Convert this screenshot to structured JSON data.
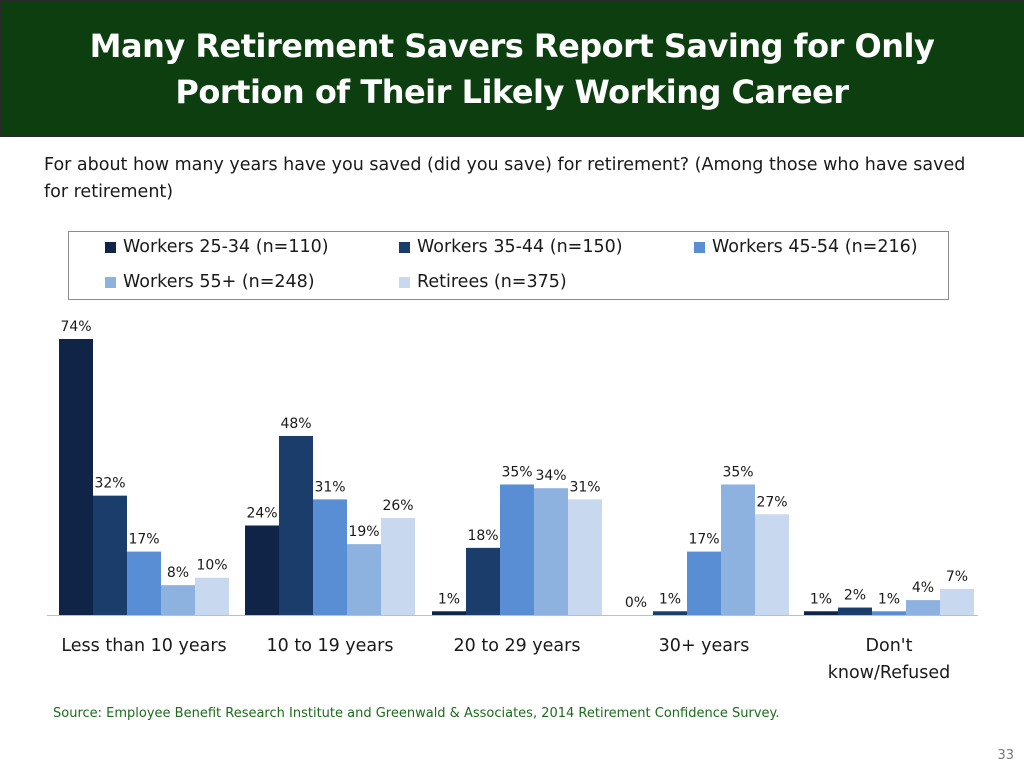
{
  "header": {
    "title": "Many Retirement Savers Report Saving for Only Portion of Their Likely Working Career"
  },
  "question": "For about how many years have you saved (did you save) for retirement? (Among those who have saved for retirement)",
  "source": "Source:  Employee Benefit Research Institute and Greenwald & Associates, 2014 Retirement Confidence Survey.",
  "page_number": "33",
  "colors": {
    "banner": "#0d3e10",
    "series": [
      "#0f2447",
      "#1b3d6c",
      "#5a8ed4",
      "#8eb2e0",
      "#c7d8ef"
    ]
  },
  "chart_data": {
    "type": "bar",
    "title": "",
    "xlabel": "",
    "ylabel": "",
    "ylim": [
      0,
      74
    ],
    "grid": false,
    "legend_position": "top",
    "categories": [
      "Less than 10 years",
      "10 to 19 years",
      "20 to 29 years",
      "30+ years",
      "Don't know/Refused"
    ],
    "series": [
      {
        "name": "Workers 25-34 (n=110)",
        "values": [
          74,
          24,
          1,
          0,
          1
        ],
        "labels": [
          "74%",
          "24%",
          "1%",
          "0%",
          "1%"
        ]
      },
      {
        "name": "Workers 35-44 (n=150)",
        "values": [
          32,
          48,
          18,
          1,
          2
        ],
        "labels": [
          "32%",
          "48%",
          "18%",
          "1%",
          "2%"
        ]
      },
      {
        "name": "Workers 45-54 (n=216)",
        "values": [
          17,
          31,
          35,
          17,
          1
        ],
        "labels": [
          "17%",
          "31%",
          "35%",
          "17%",
          "1%"
        ]
      },
      {
        "name": "Workers 55+ (n=248)",
        "values": [
          8,
          19,
          34,
          35,
          4
        ],
        "labels": [
          "8%",
          "19%",
          "34%",
          "35%",
          "4%"
        ]
      },
      {
        "name": "Retirees (n=375)",
        "values": [
          10,
          26,
          31,
          27,
          7
        ],
        "labels": [
          "10%",
          "26%",
          "31%",
          "27%",
          "7%"
        ]
      }
    ]
  }
}
